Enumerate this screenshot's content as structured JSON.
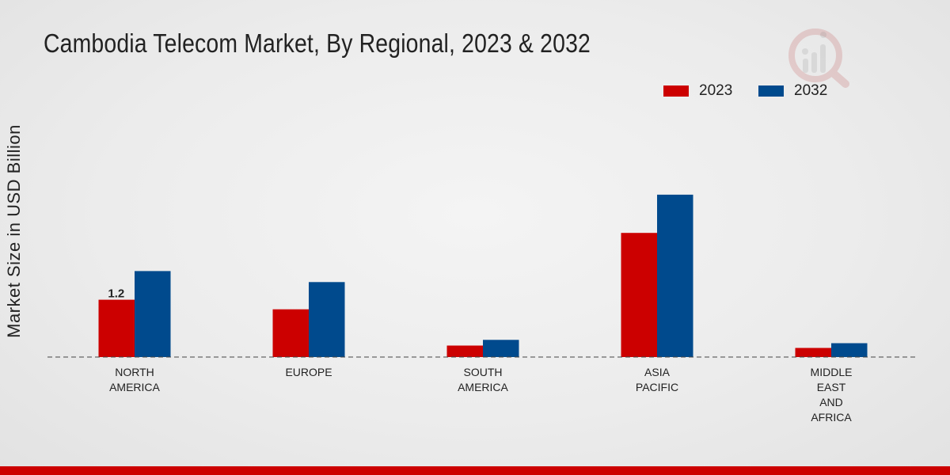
{
  "chart_data": {
    "type": "bar",
    "title": "Cambodia Telecom Market, By Regional, 2023 & 2032",
    "xlabel": "",
    "ylabel": "Market Size in USD Billion",
    "categories": [
      [
        "NORTH",
        "AMERICA"
      ],
      [
        "EUROPE"
      ],
      [
        "SOUTH",
        "AMERICA"
      ],
      [
        "ASIA",
        "PACIFIC"
      ],
      [
        "MIDDLE",
        "EAST",
        "AND",
        "AFRICA"
      ]
    ],
    "series": [
      {
        "name": "2023",
        "color": "#cc0000",
        "values": [
          1.2,
          1.0,
          0.24,
          2.6,
          0.19
        ]
      },
      {
        "name": "2032",
        "color": "#004a8d",
        "values": [
          1.8,
          1.57,
          0.36,
          3.4,
          0.29
        ]
      }
    ],
    "data_labels": [
      {
        "series": 0,
        "index": 0,
        "text": "1.2"
      }
    ],
    "ylim": [
      0,
      6.45
    ],
    "grid": false,
    "legend_position": "top-right"
  }
}
